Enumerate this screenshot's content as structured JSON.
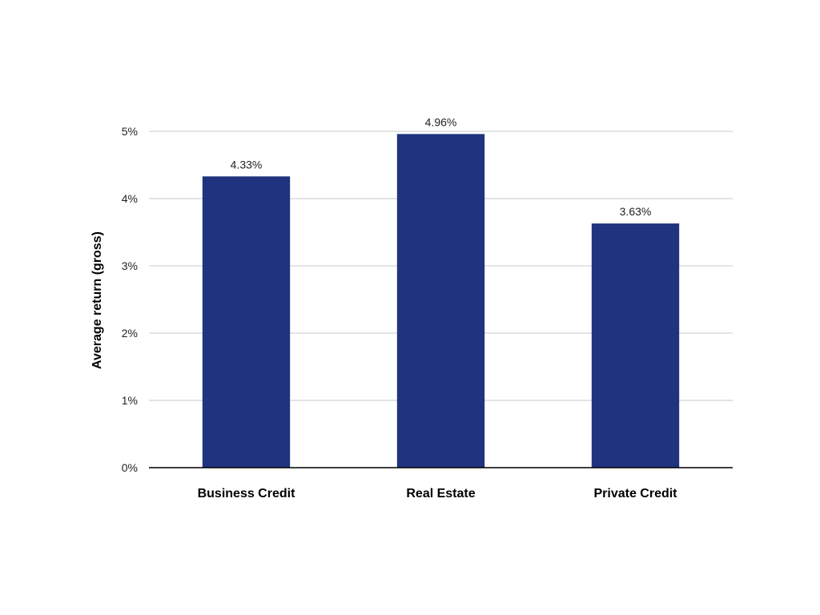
{
  "chart_data": {
    "type": "bar",
    "title": "",
    "xlabel": "",
    "ylabel": "Average return (gross)",
    "categories": [
      "Business Credit",
      "Real Estate",
      "Private Credit"
    ],
    "values": [
      4.33,
      4.96,
      3.63
    ],
    "data_labels": [
      "4.33%",
      "4.96%",
      "3.63%"
    ],
    "ylim": [
      0,
      5
    ],
    "yticks": [
      0,
      1,
      2,
      3,
      4,
      5
    ],
    "ytick_labels": [
      "0%",
      "1%",
      "2%",
      "3%",
      "4%",
      "5%"
    ],
    "grid": true,
    "legend": "none",
    "colors": {
      "bar": "#1f337f",
      "grid": "#c8c8c8",
      "axis": "#000000"
    }
  }
}
